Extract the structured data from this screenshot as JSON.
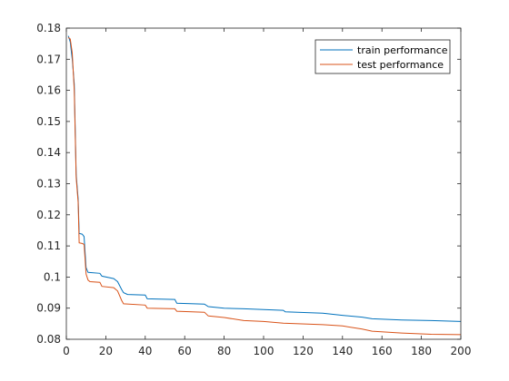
{
  "chart_data": {
    "type": "line",
    "title": "",
    "xlabel": "",
    "ylabel": "",
    "xlim": [
      0,
      200
    ],
    "ylim": [
      0.08,
      0.18
    ],
    "x_ticks": [
      0,
      20,
      40,
      60,
      80,
      100,
      120,
      140,
      160,
      180,
      200
    ],
    "x_tick_labels": [
      "0",
      "20",
      "40",
      "60",
      "80",
      "100",
      "120",
      "140",
      "160",
      "180",
      "200"
    ],
    "y_ticks": [
      0.08,
      0.09,
      0.1,
      0.11,
      0.12,
      0.13,
      0.14,
      0.15,
      0.16,
      0.17,
      0.18
    ],
    "y_tick_labels": [
      "0.08",
      "0.09",
      "0.1",
      "0.11",
      "0.12",
      "0.13",
      "0.14",
      "0.15",
      "0.16",
      "0.17",
      "0.18"
    ],
    "grid": false,
    "legend_position": "top-right",
    "series": [
      {
        "name": "train performance",
        "color": "#0072BD",
        "points": [
          [
            1,
            0.1775
          ],
          [
            2,
            0.1755
          ],
          [
            3,
            0.17
          ],
          [
            4,
            0.162
          ],
          [
            5,
            0.133
          ],
          [
            6,
            0.125
          ],
          [
            6.5,
            0.114
          ],
          [
            8,
            0.1138
          ],
          [
            9,
            0.113
          ],
          [
            10,
            0.103
          ],
          [
            11,
            0.1015
          ],
          [
            17,
            0.1012
          ],
          [
            18,
            0.1003
          ],
          [
            24,
            0.0995
          ],
          [
            26,
            0.0985
          ],
          [
            28,
            0.096
          ],
          [
            29,
            0.095
          ],
          [
            31,
            0.0944
          ],
          [
            40,
            0.0942
          ],
          [
            41,
            0.093
          ],
          [
            55,
            0.0928
          ],
          [
            56,
            0.0916
          ],
          [
            70,
            0.0913
          ],
          [
            72,
            0.0905
          ],
          [
            80,
            0.09
          ],
          [
            90,
            0.0898
          ],
          [
            110,
            0.0893
          ],
          [
            111,
            0.0888
          ],
          [
            130,
            0.0884
          ],
          [
            140,
            0.0877
          ],
          [
            150,
            0.0871
          ],
          [
            155,
            0.0866
          ],
          [
            170,
            0.0862
          ],
          [
            185,
            0.086
          ],
          [
            200,
            0.0857
          ]
        ]
      },
      {
        "name": "test performance",
        "color": "#D95319",
        "points": [
          [
            1,
            0.177
          ],
          [
            2,
            0.1765
          ],
          [
            3,
            0.172
          ],
          [
            4,
            0.16
          ],
          [
            5,
            0.132
          ],
          [
            6,
            0.124
          ],
          [
            6.5,
            0.111
          ],
          [
            8,
            0.1108
          ],
          [
            9,
            0.1105
          ],
          [
            10,
            0.101
          ],
          [
            11,
            0.099
          ],
          [
            12,
            0.0985
          ],
          [
            17,
            0.0983
          ],
          [
            18,
            0.097
          ],
          [
            24,
            0.0966
          ],
          [
            26,
            0.0955
          ],
          [
            28,
            0.0925
          ],
          [
            29,
            0.0914
          ],
          [
            40,
            0.091
          ],
          [
            41,
            0.09
          ],
          [
            55,
            0.0898
          ],
          [
            56,
            0.089
          ],
          [
            70,
            0.0887
          ],
          [
            72,
            0.0875
          ],
          [
            80,
            0.087
          ],
          [
            90,
            0.086
          ],
          [
            100,
            0.0857
          ],
          [
            110,
            0.0852
          ],
          [
            130,
            0.0847
          ],
          [
            140,
            0.0843
          ],
          [
            150,
            0.0833
          ],
          [
            155,
            0.0826
          ],
          [
            170,
            0.082
          ],
          [
            185,
            0.0816
          ],
          [
            200,
            0.0815
          ]
        ]
      }
    ]
  }
}
